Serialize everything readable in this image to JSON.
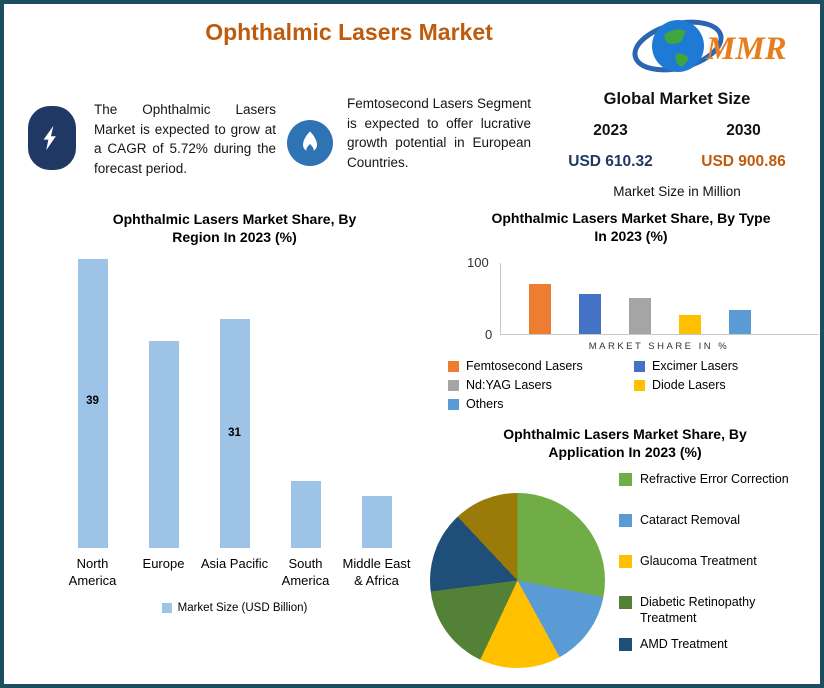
{
  "header": {
    "title": "Ophthalmic Lasers Market",
    "logo": {
      "text": "MMR"
    }
  },
  "callouts": [
    {
      "icon": "lightning-bolt-icon",
      "text": "The Ophthalmic Lasers Market is expected to grow at a CAGR of 5.72% during the forecast period."
    },
    {
      "icon": "flame-icon",
      "text": "Femtosecond Lasers Segment is expected to offer lucrative growth potential in European Countries."
    }
  ],
  "market_size": {
    "heading": "Global Market Size",
    "years": [
      "2023",
      "2030"
    ],
    "values": [
      "USD 610.32",
      "USD 900.86"
    ],
    "note": "Market Size in Million"
  },
  "theme": {
    "title_color": "#BE5B0D",
    "border_color": "#1A4E60",
    "value_2023_color": "#203864",
    "value_2030_color": "#BE5B0D"
  },
  "chart_data": [
    {
      "id": "region_bar",
      "type": "bar",
      "title": "Ophthalmic Lasers Market Share, By Region In 2023 (%)",
      "categories": [
        "North America",
        "Europe",
        "Asia Pacific",
        "South America",
        "Middle East & Africa"
      ],
      "values": [
        39,
        28,
        31,
        9,
        7
      ],
      "data_labels": [
        "39",
        "",
        "31",
        "",
        ""
      ],
      "bar_color": "#9DC3E6",
      "legend": "Market Size (USD Billion)",
      "ylim": [
        0,
        40
      ],
      "axis_visible": false
    },
    {
      "id": "type_bar",
      "type": "bar",
      "title": "Ophthalmic Lasers Market Share, By Type In 2023 (%)",
      "categories": [
        "Femtosecond Lasers",
        "Excimer Lasers",
        "Nd:YAG Lasers",
        "Diode Lasers",
        "Others"
      ],
      "values": [
        70,
        57,
        50,
        27,
        34
      ],
      "colors": [
        "#ED7D31",
        "#4472C4",
        "#A5A5A5",
        "#FFC000",
        "#5B9BD5"
      ],
      "xlabel": "MARKET SHARE IN %",
      "ylim": [
        0,
        100
      ],
      "yticks": [
        "100",
        "0"
      ],
      "legend_position": "bottom"
    },
    {
      "id": "application_pie",
      "type": "pie",
      "title": "Ophthalmic Lasers Market Share, By Application In 2023 (%)",
      "slices": [
        {
          "label": "Refractive Error Correction",
          "value": 28,
          "color": "#70AD47"
        },
        {
          "label": "Cataract Removal",
          "value": 14,
          "color": "#5B9BD5"
        },
        {
          "label": "Glaucoma Treatment",
          "value": 15,
          "color": "#FFC000"
        },
        {
          "label": "Diabetic Retinopathy Treatment",
          "value": 16,
          "color": "#538135"
        },
        {
          "label": "AMD Treatment",
          "value": 15,
          "color": "#1F4E79"
        },
        {
          "label": "",
          "value": 12,
          "color": "#9A7B0A"
        }
      ],
      "legend_position": "right"
    }
  ]
}
